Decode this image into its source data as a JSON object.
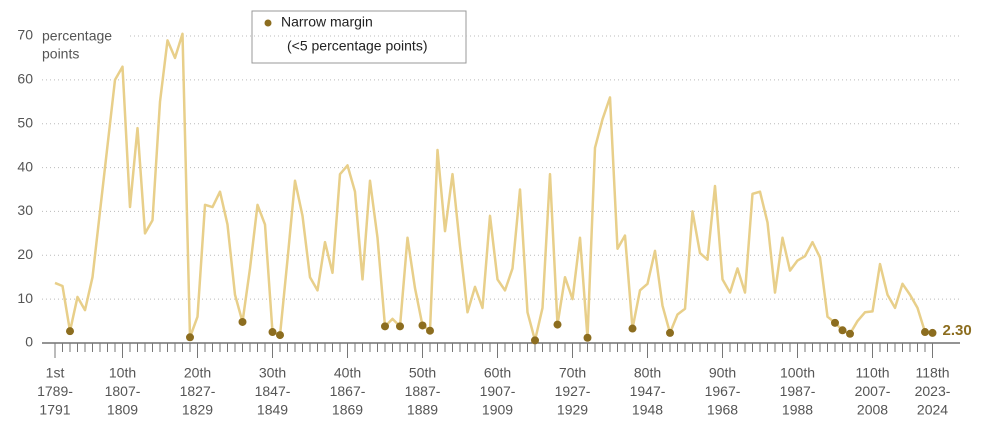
{
  "chart_data": {
    "type": "line",
    "ylabel": [
      "percentage",
      "points"
    ],
    "legend": {
      "lines": [
        "Narrow margin",
        "(<5 percentage points)"
      ],
      "threshold": 5
    },
    "line_color": "#e8cf8a",
    "dot_color": "#8c6d1f",
    "ylim": [
      0,
      70
    ],
    "yticks": [
      0,
      10,
      20,
      30,
      40,
      50,
      60,
      70
    ],
    "grid": true,
    "categories": [
      [
        "1st",
        "1789-",
        "1791"
      ],
      null,
      null,
      null,
      null,
      null,
      null,
      null,
      null,
      [
        "10th",
        "1807-",
        "1809"
      ],
      null,
      null,
      null,
      null,
      null,
      null,
      null,
      null,
      null,
      [
        "20th",
        "1827-",
        "1829"
      ],
      null,
      null,
      null,
      null,
      null,
      null,
      null,
      null,
      null,
      [
        "30th",
        "1847-",
        "1849"
      ],
      null,
      null,
      null,
      null,
      null,
      null,
      null,
      null,
      null,
      [
        "40th",
        "1867-",
        "1869"
      ],
      null,
      null,
      null,
      null,
      null,
      null,
      null,
      null,
      null,
      [
        "50th",
        "1887-",
        "1889"
      ],
      null,
      null,
      null,
      null,
      null,
      null,
      null,
      null,
      null,
      [
        "60th",
        "1907-",
        "1909"
      ],
      null,
      null,
      null,
      null,
      null,
      null,
      null,
      null,
      null,
      [
        "70th",
        "1927-",
        "1929"
      ],
      null,
      null,
      null,
      null,
      null,
      null,
      null,
      null,
      null,
      [
        "80th",
        "1947-",
        "1948"
      ],
      null,
      null,
      null,
      null,
      null,
      null,
      null,
      null,
      null,
      [
        "90th",
        "1967-",
        "1968"
      ],
      null,
      null,
      null,
      null,
      null,
      null,
      null,
      null,
      null,
      [
        "100th",
        "1987-",
        "1988"
      ],
      null,
      null,
      null,
      null,
      null,
      null,
      null,
      null,
      null,
      [
        "110th",
        "2007-",
        "2008"
      ],
      null,
      null,
      null,
      null,
      null,
      null,
      null,
      [
        "118th",
        "2023-",
        "2024"
      ]
    ],
    "values": [
      13.7,
      13,
      2.7,
      10.5,
      7.5,
      15,
      30,
      45,
      60,
      63,
      31,
      49,
      25,
      28,
      55,
      69,
      65,
      70.5,
      1.3,
      6,
      31.5,
      31,
      34.5,
      27,
      11,
      4.8,
      17,
      31.5,
      27,
      2.5,
      1.8,
      19,
      37,
      29,
      15,
      12,
      23,
      16,
      38.5,
      40.5,
      34.5,
      14.5,
      37,
      24,
      3.8,
      5.5,
      3.8,
      24,
      12.5,
      4,
      2.8,
      44,
      25.5,
      38.5,
      22,
      7,
      12.8,
      8,
      29,
      14.5,
      12,
      17,
      35,
      7,
      0.6,
      8,
      38.5,
      4.2,
      15,
      10,
      24,
      1.2,
      44.5,
      51,
      56,
      21.5,
      24.5,
      3.3,
      12,
      13.5,
      21,
      8.5,
      2.3,
      6.5,
      7.8,
      30,
      20.5,
      19,
      35.8,
      14.5,
      11.5,
      17,
      11.5,
      34,
      34.5,
      27.5,
      11.5,
      24,
      16.5,
      18.8,
      19.8,
      23,
      19.5,
      6,
      4.6,
      2.9,
      2.1,
      5,
      7,
      7.2,
      18,
      11,
      8,
      13.5,
      11,
      8,
      2.5,
      2.3
    ],
    "value_labels": [
      null,
      null,
      null,
      null,
      null,
      null,
      null,
      null,
      null,
      null,
      null,
      null,
      null,
      null,
      null,
      null,
      null,
      null,
      null,
      null,
      null,
      null,
      null,
      null,
      null,
      null,
      null,
      null,
      null,
      null,
      null,
      null,
      null,
      null,
      null,
      null,
      null,
      null,
      null,
      null,
      null,
      null,
      null,
      null,
      null,
      null,
      null,
      null,
      null,
      null,
      null,
      null,
      null,
      null,
      null,
      null,
      null,
      null,
      null,
      null,
      null,
      null,
      null,
      null,
      null,
      null,
      null,
      null,
      null,
      null,
      null,
      null,
      null,
      null,
      null,
      null,
      null,
      null,
      null,
      null,
      null,
      null,
      null,
      null,
      null,
      null,
      null,
      null,
      null,
      null,
      null,
      null,
      null,
      null,
      null,
      null,
      null,
      null,
      null,
      null,
      null,
      null,
      null,
      null,
      null,
      null,
      null,
      null,
      null,
      null,
      null,
      null,
      null,
      null,
      null,
      null,
      null,
      "2.30"
    ]
  }
}
